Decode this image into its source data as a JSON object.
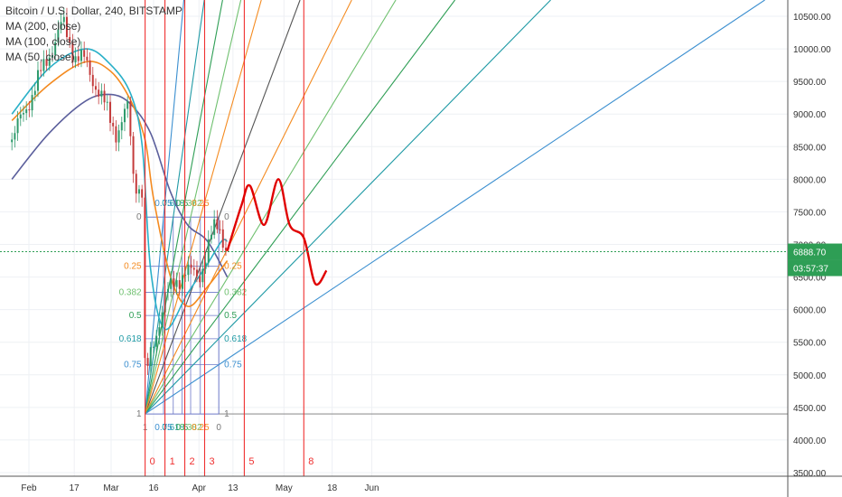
{
  "header": {
    "title": "Bitcoin / U.S. Dollar, 240, BITSTAMP",
    "indicators": [
      "MA (200, close)",
      "MA (100, close)",
      "MA (50, close)"
    ]
  },
  "price_badge": {
    "price": "6888.70",
    "countdown": "03:57:37"
  },
  "colors": {
    "ma200": "#5b5f9c",
    "ma100": "#f48a1f",
    "ma50": "#2ab0c8",
    "candle_up": "#2d9a6b",
    "candle_down": "#c43b3b",
    "cycle_lines": "#ef3030",
    "forecast": "#e00000",
    "price_line": "#2e9e55",
    "fan_grid": "#6c78c8"
  },
  "fan": {
    "levels_left": [
      "0",
      "0.25",
      "0.382",
      "0.5",
      "0.618",
      "0.75",
      "1"
    ],
    "levels_right": [
      "0",
      "0.25",
      "0.382",
      "0.5",
      "0.618",
      "0.75",
      "1"
    ],
    "levels_bottom": [
      "1",
      "0.75",
      "0.618",
      "0.5",
      "0.382",
      "0.25",
      "0"
    ],
    "levels_top": [
      "0.75",
      "0.618",
      "0.5",
      "0.382",
      "0.25"
    ]
  },
  "cycle_labels": [
    "0",
    "1",
    "2",
    "3",
    "5",
    "8"
  ],
  "chart_data": {
    "type": "line",
    "title": "Bitcoin / U.S. Dollar, 240, BITSTAMP",
    "xlabel": "",
    "ylabel": "",
    "x_ticks": [
      "Feb",
      "17",
      "Mar",
      "16",
      "Apr",
      "13",
      "May",
      "18",
      "Jun"
    ],
    "y_ticks": [
      3500,
      4000,
      4500,
      5000,
      5500,
      6000,
      6500,
      7000,
      7500,
      8000,
      8500,
      9000,
      9500,
      10000,
      10500
    ],
    "y_tick_labels": [
      "3500.00",
      "4000.00",
      "4500.00",
      "5000.00",
      "5500.00",
      "6000.00",
      "6500.00",
      "7000.00",
      "7500.00",
      "8000.00",
      "8500.00",
      "9000.00",
      "9500.00",
      "10000.00",
      "10500.00"
    ],
    "ylim": [
      3450,
      10900
    ],
    "last_price": 6888.7,
    "grid": true,
    "legend_position": "top-left",
    "series": [
      {
        "name": "MA (200, close)",
        "points": [
          [
            "Jan 26",
            8000
          ],
          [
            "Feb 8",
            8700
          ],
          [
            "Feb 21",
            9200
          ],
          [
            "Mar 1",
            9300
          ],
          [
            "Mar 8",
            9150
          ],
          [
            "Mar 15",
            8700
          ],
          [
            "Mar 22",
            7800
          ],
          [
            "Mar 28",
            7300
          ],
          [
            "Apr 4",
            7050
          ],
          [
            "Apr 11",
            6500
          ]
        ]
      },
      {
        "name": "MA (100, close)",
        "points": [
          [
            "Jan 26",
            8900
          ],
          [
            "Feb 8",
            9450
          ],
          [
            "Feb 21",
            9800
          ],
          [
            "Mar 1",
            9650
          ],
          [
            "Mar 8",
            9200
          ],
          [
            "Mar 13",
            8600
          ],
          [
            "Mar 16",
            7700
          ],
          [
            "Mar 22",
            6500
          ],
          [
            "Mar 28",
            6050
          ],
          [
            "Apr 4",
            6350
          ],
          [
            "Apr 11",
            6750
          ]
        ]
      },
      {
        "name": "MA (50, close)",
        "points": [
          [
            "Jan 26",
            9000
          ],
          [
            "Feb 8",
            9700
          ],
          [
            "Feb 21",
            10000
          ],
          [
            "Mar 1",
            9750
          ],
          [
            "Mar 8",
            9300
          ],
          [
            "Mar 12",
            8500
          ],
          [
            "Mar 15",
            6600
          ],
          [
            "Mar 20",
            5700
          ],
          [
            "Mar 28",
            6250
          ],
          [
            "Apr 4",
            6700
          ],
          [
            "Apr 9",
            7050
          ],
          [
            "Apr 11",
            7050
          ]
        ]
      },
      {
        "name": "Price",
        "points": [
          [
            "Jan 26",
            8600
          ],
          [
            "Feb 2",
            9300
          ],
          [
            "Feb 8",
            9900
          ],
          [
            "Feb 13",
            10400
          ],
          [
            "Feb 17",
            9900
          ],
          [
            "Feb 21",
            9800
          ],
          [
            "Feb 27",
            9200
          ],
          [
            "Mar 3",
            8700
          ],
          [
            "Mar 7",
            9100
          ],
          [
            "Mar 9",
            8000
          ],
          [
            "Mar 12",
            7800
          ],
          [
            "Mar 13",
            4900
          ],
          [
            "Mar 15",
            5300
          ],
          [
            "Mar 20",
            6200
          ],
          [
            "Mar 27",
            6600
          ],
          [
            "Apr 1",
            6500
          ],
          [
            "Apr 6",
            7200
          ],
          [
            "Apr 8",
            7300
          ],
          [
            "Apr 11",
            6890
          ]
        ]
      },
      {
        "name": "Forecast",
        "points": [
          [
            "Apr 11",
            6900
          ],
          [
            "Apr 16",
            7600
          ],
          [
            "Apr 19",
            7900
          ],
          [
            "Apr 24",
            7300
          ],
          [
            "Apr 29",
            8000
          ],
          [
            "May 3",
            7300
          ],
          [
            "May 8",
            7100
          ],
          [
            "May 12",
            6400
          ],
          [
            "May 16",
            6600
          ]
        ]
      }
    ],
    "cycle_lines": [
      {
        "label": "0",
        "date": "Mar 13"
      },
      {
        "label": "1",
        "date": "Mar 20"
      },
      {
        "label": "2",
        "date": "Mar 27"
      },
      {
        "label": "3",
        "date": "Apr 3"
      },
      {
        "label": "5",
        "date": "Apr 17"
      },
      {
        "label": "8",
        "date": "May 8"
      }
    ]
  }
}
